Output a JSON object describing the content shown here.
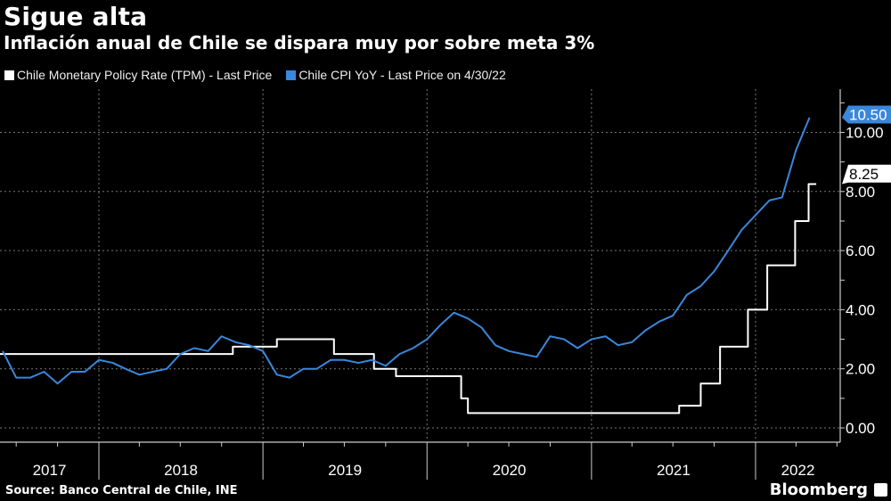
{
  "title": "Sigue alta",
  "subtitle": "Inflación anual de Chile se dispara muy por sobre meta 3%",
  "source": "Source: Banco Central de Chile, INE",
  "brand": "Bloomberg",
  "chart_data": {
    "type": "line",
    "title": "Sigue alta",
    "subtitle": "Inflación anual de Chile se dispara muy por sobre meta 3%",
    "xlabel": "",
    "ylabel": "",
    "y_axis_side": "right",
    "ylim": [
      -0.4,
      11.5
    ],
    "y_ticks": [
      "0.00",
      "2.00",
      "4.00",
      "6.00",
      "8.00",
      "10.00"
    ],
    "x_tick_labels": [
      "2017",
      "2018",
      "2019",
      "2020",
      "2021",
      "2022"
    ],
    "grid": true,
    "legend_position": "top-left",
    "series": [
      {
        "name": "Chile Monetary Policy Rate (TPM) - Last Price",
        "color": "#ffffff",
        "style": "step",
        "last_value_label": "8.25",
        "points": [
          [
            "2017-05-20",
            2.5
          ],
          [
            "2018-10-25",
            2.75
          ],
          [
            "2019-01-31",
            3.0
          ],
          [
            "2019-06-07",
            2.5
          ],
          [
            "2019-09-04",
            2.0
          ],
          [
            "2019-10-23",
            1.75
          ],
          [
            "2020-03-16",
            1.0
          ],
          [
            "2020-03-31",
            0.5
          ],
          [
            "2021-07-14",
            0.75
          ],
          [
            "2021-08-31",
            1.5
          ],
          [
            "2021-10-13",
            2.75
          ],
          [
            "2021-12-14",
            4.0
          ],
          [
            "2022-01-26",
            5.5
          ],
          [
            "2022-03-29",
            7.0
          ],
          [
            "2022-04-28",
            8.25
          ],
          [
            "2022-05-15",
            8.25
          ]
        ]
      },
      {
        "name": "Chile CPI YoY - Last Price on 4/30/22",
        "color": "#3a87dc",
        "style": "line",
        "last_value_label": "10.50",
        "points": [
          [
            "2017-05-31",
            2.6
          ],
          [
            "2017-06-30",
            1.7
          ],
          [
            "2017-07-31",
            1.7
          ],
          [
            "2017-08-31",
            1.9
          ],
          [
            "2017-09-30",
            1.5
          ],
          [
            "2017-10-31",
            1.9
          ],
          [
            "2017-11-30",
            1.9
          ],
          [
            "2017-12-31",
            2.3
          ],
          [
            "2018-01-31",
            2.2
          ],
          [
            "2018-02-28",
            2.0
          ],
          [
            "2018-03-31",
            1.8
          ],
          [
            "2018-04-30",
            1.9
          ],
          [
            "2018-05-31",
            2.0
          ],
          [
            "2018-06-30",
            2.5
          ],
          [
            "2018-07-31",
            2.7
          ],
          [
            "2018-08-31",
            2.6
          ],
          [
            "2018-09-30",
            3.1
          ],
          [
            "2018-10-31",
            2.9
          ],
          [
            "2018-11-30",
            2.8
          ],
          [
            "2018-12-31",
            2.6
          ],
          [
            "2019-01-31",
            1.8
          ],
          [
            "2019-02-28",
            1.7
          ],
          [
            "2019-03-31",
            2.0
          ],
          [
            "2019-04-30",
            2.0
          ],
          [
            "2019-05-31",
            2.3
          ],
          [
            "2019-06-30",
            2.3
          ],
          [
            "2019-07-31",
            2.2
          ],
          [
            "2019-08-31",
            2.3
          ],
          [
            "2019-09-30",
            2.1
          ],
          [
            "2019-10-31",
            2.5
          ],
          [
            "2019-11-30",
            2.7
          ],
          [
            "2019-12-31",
            3.0
          ],
          [
            "2020-01-31",
            3.5
          ],
          [
            "2020-02-29",
            3.9
          ],
          [
            "2020-03-31",
            3.7
          ],
          [
            "2020-04-30",
            3.4
          ],
          [
            "2020-05-31",
            2.8
          ],
          [
            "2020-06-30",
            2.6
          ],
          [
            "2020-07-31",
            2.5
          ],
          [
            "2020-08-31",
            2.4
          ],
          [
            "2020-09-30",
            3.1
          ],
          [
            "2020-10-31",
            3.0
          ],
          [
            "2020-11-30",
            2.7
          ],
          [
            "2020-12-31",
            3.0
          ],
          [
            "2021-01-31",
            3.1
          ],
          [
            "2021-02-28",
            2.8
          ],
          [
            "2021-03-31",
            2.9
          ],
          [
            "2021-04-30",
            3.3
          ],
          [
            "2021-05-31",
            3.6
          ],
          [
            "2021-06-30",
            3.8
          ],
          [
            "2021-07-31",
            4.5
          ],
          [
            "2021-08-31",
            4.8
          ],
          [
            "2021-09-30",
            5.3
          ],
          [
            "2021-10-31",
            6.0
          ],
          [
            "2021-11-30",
            6.7
          ],
          [
            "2021-12-31",
            7.2
          ],
          [
            "2022-01-31",
            7.7
          ],
          [
            "2022-02-28",
            7.8
          ],
          [
            "2022-03-31",
            9.4
          ],
          [
            "2022-04-30",
            10.5
          ]
        ]
      }
    ]
  }
}
